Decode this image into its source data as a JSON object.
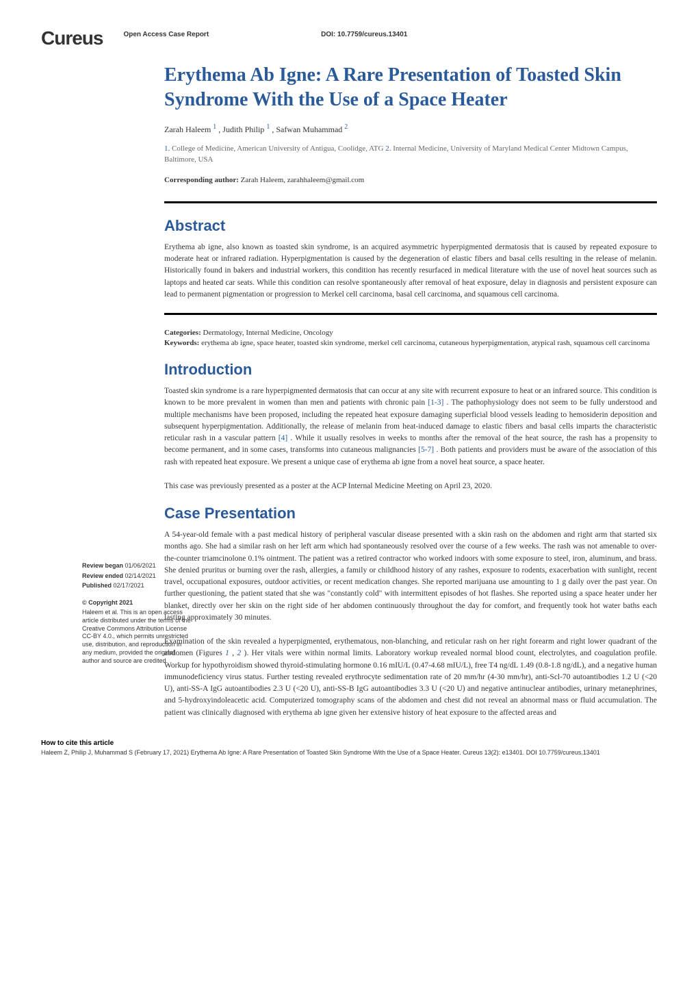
{
  "header": {
    "logo": "Cureus",
    "article_type": "Open Access Case Report",
    "doi": "DOI: 10.7759/cureus.13401"
  },
  "title": "Erythema Ab Igne: A Rare Presentation of Toasted Skin Syndrome With the Use of a Space Heater",
  "authors": {
    "a1_name": "Zarah Haleem",
    "a1_sup": "1",
    "a2_name": "Judith Philip",
    "a2_sup": "1",
    "a3_name": "Safwan Muhammad",
    "a3_sup": "2"
  },
  "affiliations": {
    "n1": "1.",
    "t1": " College of Medicine, American University of Antigua, Coolidge, ATG ",
    "n2": "2.",
    "t2": " Internal Medicine, University of Maryland Medical Center Midtown Campus, Baltimore, USA"
  },
  "corresponding": {
    "label": "Corresponding author:",
    "text": " Zarah Haleem, zarahhaleem@gmail.com"
  },
  "abstract": {
    "heading": "Abstract",
    "text": "Erythema ab igne, also known as toasted skin syndrome, is an acquired asymmetric hyperpigmented dermatosis that is caused by repeated exposure to moderate heat or infrared radiation. Hyperpigmentation is caused by the degeneration of elastic fibers and basal cells resulting in the release of melanin. Historically found in bakers and industrial workers, this condition has recently resurfaced in medical literature with the use of novel heat sources such as laptops and heated car seats. While this condition can resolve spontaneously after removal of heat exposure, delay in diagnosis and persistent exposure can lead to permanent pigmentation or progression to Merkel cell carcinoma, basal cell carcinoma, and squamous cell carcinoma."
  },
  "categories": {
    "label": "Categories:",
    "text": " Dermatology, Internal Medicine, Oncology"
  },
  "keywords": {
    "label": "Keywords:",
    "text": " erythema ab igne, space heater, toasted skin syndrome, merkel cell carcinoma, cutaneous hyperpigmentation, atypical rash, squamous cell carcinoma"
  },
  "introduction": {
    "heading": "Introduction",
    "p1a": "Toasted skin syndrome is a rare hyperpigmented dermatosis that can occur at any site with recurrent exposure to heat or an infrared source. This condition is known to be more prevalent in women than men and patients with chronic pain ",
    "ref1": "[1-3]",
    "p1b": ". The pathophysiology does not seem to be fully understood and multiple mechanisms have been proposed, including the repeated heat exposure damaging superficial blood vessels leading to hemosiderin deposition and subsequent hyperpigmentation. Additionally, the release of melanin from heat-induced damage to elastic fibers and basal cells imparts the characteristic reticular rash in a vascular pattern ",
    "ref2": "[4]",
    "p1c": ". While it usually resolves in weeks to months after the removal of the heat source, the rash has a propensity to become permanent, and in some cases, transforms into cutaneous malignancies ",
    "ref3": "[5-7]",
    "p1d": ". Both patients and providers must be aware of the association of this rash with repeated heat exposure. We present a unique case of erythema ab igne from a novel heat source, a space heater.",
    "p2": "This case was previously presented as a poster at the ACP Internal Medicine Meeting on April 23, 2020."
  },
  "case": {
    "heading": "Case Presentation",
    "p1": "A 54-year-old female with a past medical history of peripheral vascular disease presented with a skin rash on the abdomen and right arm that started six months ago. She had a similar rash on her left arm which had spontaneously resolved over the course of a few weeks. The rash was not amenable to over-the-counter triamcinolone 0.1% ointment. The patient was a retired contractor who worked indoors with some exposure to steel, iron, aluminum, and brass. She denied pruritus or burning over the rash, allergies, a family or childhood history of any rashes, exposure to rodents, exacerbation with sunlight, recent travel, occupational exposures, outdoor activities, or recent medication changes. She reported marijuana use amounting to 1 g daily over the past year. On further questioning, the patient stated that she was \"constantly cold\" with intermittent episodes of hot flashes. She reported using a space heater under her blanket, directly over her skin on the right side of her abdomen continuously throughout the day for comfort, and frequently took hot water baths each lasting approximately 30 minutes.",
    "p2a": "Examination of the skin revealed a hyperpigmented, erythematous, non-blanching, and reticular rash on her right forearm and right lower quadrant of the abdomen (Figures ",
    "fig1": "1",
    "comma": ", ",
    "fig2": "2",
    "p2b": "). Her vitals were within normal limits. Laboratory workup revealed normal blood count, electrolytes, and coagulation profile. Workup for hypothyroidism showed thyroid-stimulating hormone 0.16 mIU/L (0.47-4.68 mIU/L), free T4 ng/dL 1.49 (0.8-1.8 ng/dL), and a negative human immunodeficiency virus status. Further testing revealed erythrocyte sedimentation rate of 20 mm/hr (4-30 mm/hr), anti-Scl-70 autoantibodies 1.2 U (<20 U), anti-SS-A IgG autoantibodies 2.3 U (<20 U), anti-SS-B IgG autoantibodies 3.3 U (<20 U) and negative antinuclear antibodies, urinary metanephrines, and 5-hydroxyindoleacetic acid. Computerized tomography scans of the abdomen and chest did not reveal an abnormal mass or fluid accumulation. The patient was clinically diagnosed with erythema ab igne given her extensive history of heat exposure to the affected areas and"
  },
  "sidebar": {
    "review_began_label": "Review began",
    "review_began_date": " 01/06/2021",
    "review_ended_label": "Review ended",
    "review_ended_date": " 02/14/2021",
    "published_label": "Published",
    "published_date": " 02/17/2021",
    "copyright_heading": "© Copyright",
    "copyright_year": " 2021",
    "copyright_text": "Haleem et al. This is an open access article distributed under the terms of the Creative Commons Attribution License CC-BY 4.0., which permits unrestricted use, distribution, and reproduction in any medium, provided the original author and source are credited."
  },
  "footer": {
    "heading": "How to cite this article",
    "text": "Haleem Z, Philip J, Muhammad S (February 17, 2021) Erythema Ab Igne: A Rare Presentation of Toasted Skin Syndrome With the Use of a Space Heater. Cureus 13(2): e13401. DOI 10.7759/cureus.13401"
  }
}
